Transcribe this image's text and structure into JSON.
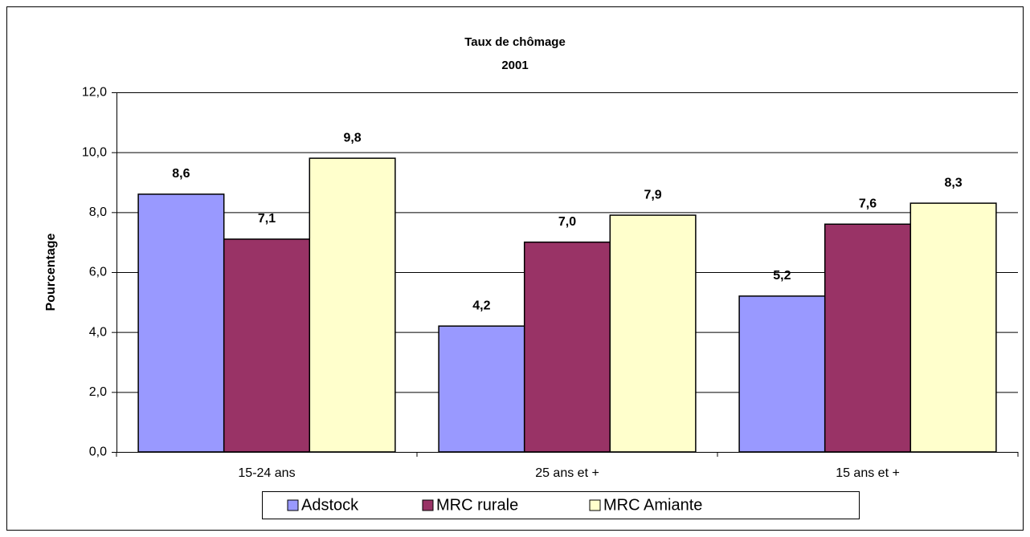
{
  "chart_data": {
    "type": "bar",
    "title": "Taux de chômage",
    "subtitle": "2001",
    "ylabel": "Pourcentage",
    "categories": [
      "15-24 ans",
      "25 ans et +",
      "15 ans et +"
    ],
    "series": [
      {
        "name": "Adstock",
        "color": "#9999ff",
        "values": [
          8.6,
          4.2,
          5.2
        ],
        "value_labels": [
          "8,6",
          "4,2",
          "5,2"
        ]
      },
      {
        "name": "MRC rurale",
        "color": "#993366",
        "values": [
          7.1,
          7.0,
          7.6
        ],
        "value_labels": [
          "7,1",
          "7,0",
          "7,6"
        ]
      },
      {
        "name": "MRC Amiante",
        "color": "#ffffcc",
        "values": [
          9.8,
          7.9,
          8.3
        ],
        "value_labels": [
          "9,8",
          "7,9",
          "8,3"
        ]
      }
    ],
    "ylim": [
      0,
      12
    ],
    "yticks": [
      {
        "value": 0,
        "label": "0,0"
      },
      {
        "value": 2,
        "label": "2,0"
      },
      {
        "value": 4,
        "label": "4,0"
      },
      {
        "value": 6,
        "label": "6,0"
      },
      {
        "value": 8,
        "label": "8,0"
      },
      {
        "value": 10,
        "label": "10,0"
      },
      {
        "value": 12,
        "label": "12,0"
      }
    ],
    "grid": true,
    "legend": "bottom"
  }
}
